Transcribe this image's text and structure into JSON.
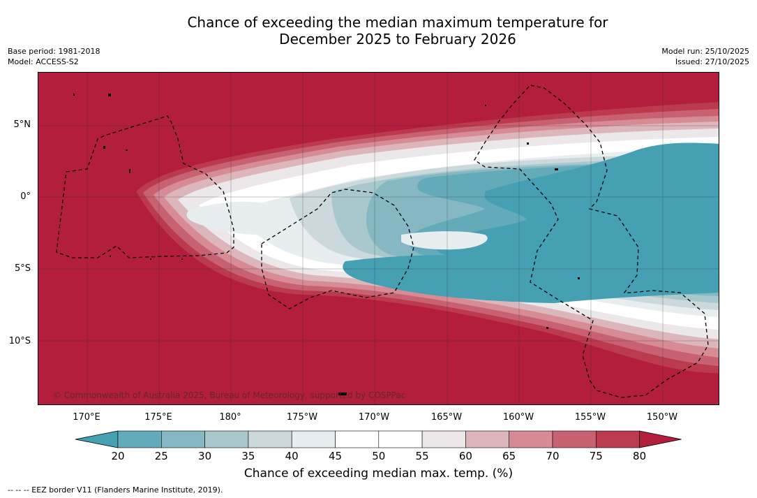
{
  "title_line1": "Chance of exceeding the median maximum temperature for",
  "title_line2": "December 2025 to February 2026",
  "base_period": "Base period: 1981-2018",
  "model": "Model: ACCESS-S2",
  "model_run": "Model run: 25/10/2025",
  "issued": "Issued: 27/10/2025",
  "copyright": "© Commonwealth of Australia 2025, Bureau of Meteorology, supported by COSPPac",
  "lat_labels": [
    "5°N",
    "0°",
    "5°S",
    "10°S"
  ],
  "lon_labels": [
    "170°E",
    "175°E",
    "180°",
    "175°W",
    "170°W",
    "165°W",
    "160°W",
    "155°W",
    "150°W"
  ],
  "colorbar_ticks": [
    "20",
    "25",
    "30",
    "35",
    "40",
    "45",
    "50",
    "55",
    "60",
    "65",
    "70",
    "75",
    "80"
  ],
  "colorbar_colors": [
    "#44a0b2",
    "#63abb9",
    "#86b8c3",
    "#a9c8cd",
    "#cbd8dc",
    "#e8eef0",
    "#ffffff",
    "#ffffff",
    "#ece8e9",
    "#ddb6bc",
    "#d68b95",
    "#c86272",
    "#bb3a4e",
    "#b21e3b"
  ],
  "colorbar_label": "Chance of exceeding median max. temp. (%)",
  "footnote": "--  --  -- EEZ border V11 (Flanders Marine Institute, 2019).",
  "colors": {
    "hot": "#b21e3b",
    "cold": "#44a0b2"
  }
}
